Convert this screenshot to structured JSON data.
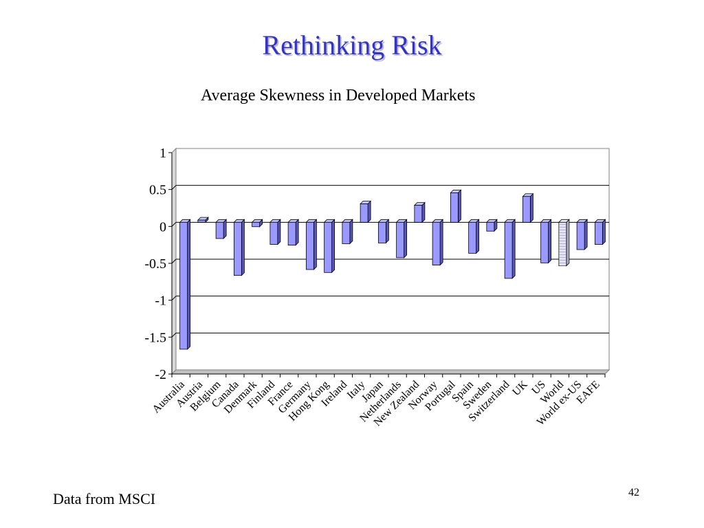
{
  "slide": {
    "title": "Rethinking Risk",
    "source_note": "Data from MSCI",
    "slide_number": "42"
  },
  "colors": {
    "title": "#3333cc",
    "bar_fill": "#9999ff",
    "bar_side": "#5858b8",
    "bar_top": "#c4c4ff",
    "highlight_fill": "#e4e4f4",
    "floor": "#c0c0c0"
  },
  "chart_data": {
    "type": "bar",
    "title": "Average Skewness in Developed Markets",
    "xlabel": "",
    "ylabel": "",
    "ylim": [
      -2,
      1
    ],
    "yticks": [
      "1",
      "0.5",
      "0",
      "-0.5",
      "-1",
      "-1.5",
      "-2"
    ],
    "grid": true,
    "legend": "none",
    "categories": [
      "Australia",
      "Austria",
      "Belgium",
      "Canada",
      "Denmark",
      "Finland",
      "France",
      "Germany",
      "Hong Kong",
      "Ireland",
      "Italy",
      "Japan",
      "Netherlands",
      "New Zealand",
      "Norway",
      "Portugal",
      "Spain",
      "Sweden",
      "Switzerland",
      "UK",
      "US",
      "World",
      "World ex-US",
      "EAFE"
    ],
    "values": [
      -1.72,
      0.03,
      -0.22,
      -0.72,
      -0.06,
      -0.3,
      -0.31,
      -0.64,
      -0.68,
      -0.29,
      0.25,
      -0.28,
      -0.48,
      0.23,
      -0.58,
      0.4,
      -0.42,
      -0.12,
      -0.76,
      0.35,
      -0.55,
      -0.59,
      -0.37,
      -0.3
    ],
    "highlight": [
      "World"
    ]
  }
}
